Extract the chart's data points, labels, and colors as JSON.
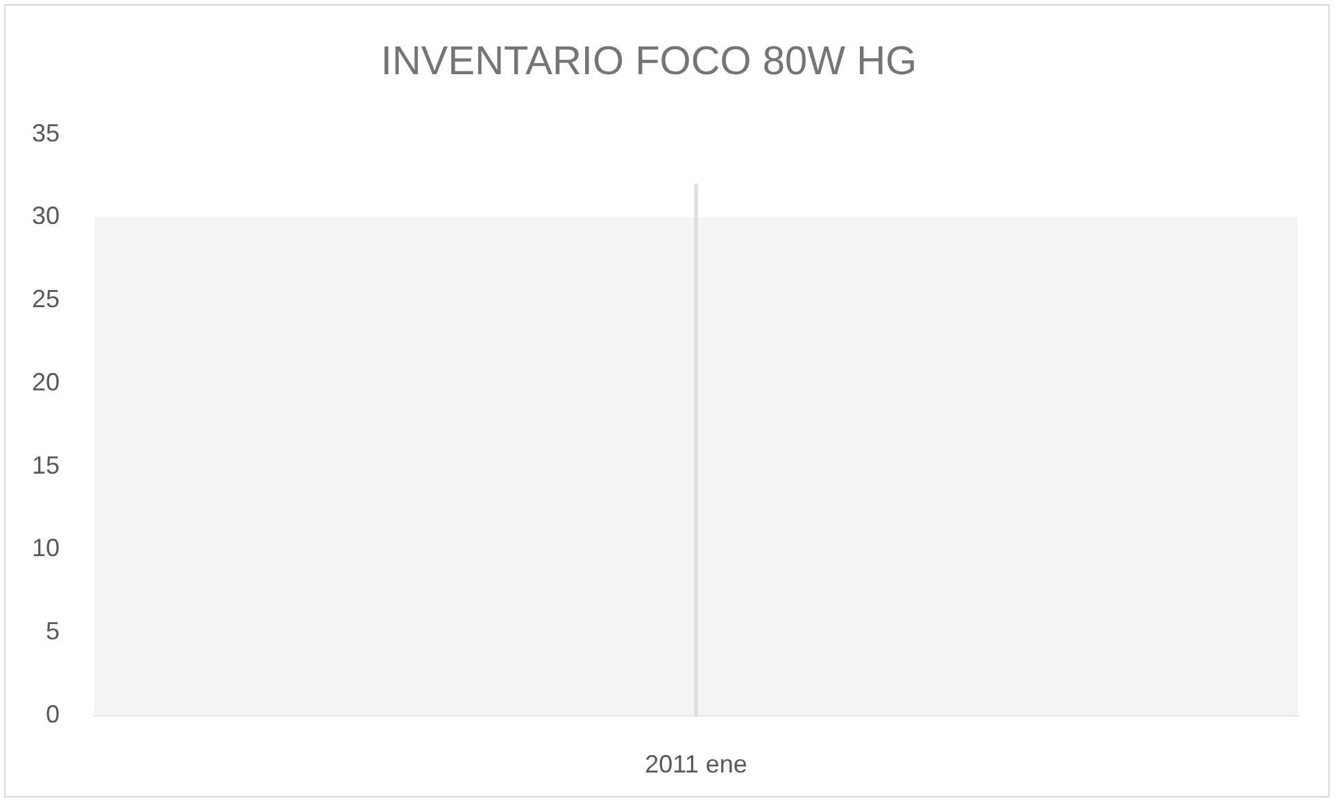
{
  "chart_data": {
    "type": "bar",
    "title": "INVENTARIO FOCO 80W HG",
    "categories": [
      "2011 ene"
    ],
    "series": [
      {
        "color": "#f4f4f4",
        "values": [
          30
        ]
      },
      {
        "color": "#dedede",
        "values": [
          32
        ]
      }
    ],
    "ylim": [
      0,
      35
    ],
    "yticks": [
      0,
      5,
      10,
      15,
      20,
      25,
      30,
      35
    ]
  }
}
